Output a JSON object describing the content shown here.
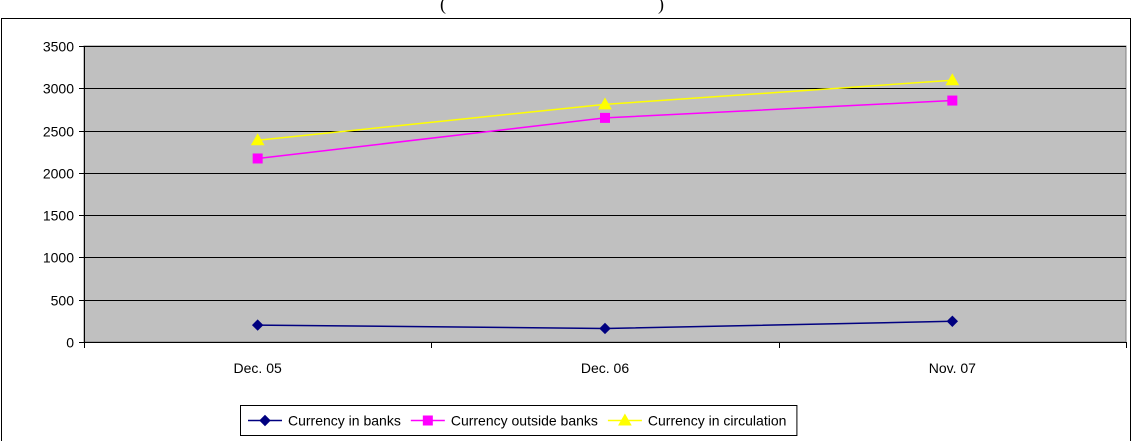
{
  "chart_data": {
    "type": "line",
    "title": "(",
    "title_right": ")",
    "categories": [
      "Dec. 05",
      "Dec. 06",
      "Nov. 07"
    ],
    "ylim": [
      0,
      3500
    ],
    "yticks": [
      0,
      500,
      1000,
      1500,
      2000,
      2500,
      3000,
      3500
    ],
    "grid": true,
    "legend_position": "bottom",
    "plot_background": "#c0c0c0",
    "series": [
      {
        "name": "Currency in banks",
        "values": [
          200,
          160,
          245
        ],
        "color": "#000080",
        "marker": "diamond"
      },
      {
        "name": "Currency outside banks",
        "values": [
          2170,
          2650,
          2855
        ],
        "color": "#ff00ff",
        "marker": "square"
      },
      {
        "name": "Currency in circulation",
        "values": [
          2385,
          2810,
          3095
        ],
        "color": "#ffff00",
        "marker": "triangle"
      }
    ]
  }
}
